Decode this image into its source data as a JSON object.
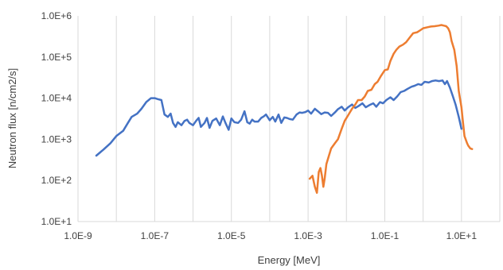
{
  "chart_data": {
    "type": "line",
    "title": "",
    "xlabel": "Energy [MeV]",
    "ylabel": "Neutron flux [n/cm2/s]",
    "x_scale": "log",
    "y_scale": "log",
    "xlim": [
      1e-09,
      100
    ],
    "ylim": [
      10,
      1000000
    ],
    "grid": "vertical",
    "legend": "none",
    "x_ticks": [
      {
        "value": 1e-09,
        "label": "1.0E-9"
      },
      {
        "value": 1e-07,
        "label": "1.0E-7"
      },
      {
        "value": 1e-05,
        "label": "1.0E-5"
      },
      {
        "value": 0.001,
        "label": "1.0E-3"
      },
      {
        "value": 0.1,
        "label": "1.0E-1"
      },
      {
        "value": 10,
        "label": "1.0E+1"
      }
    ],
    "y_ticks": [
      {
        "value": 10,
        "label": "1.0E+1"
      },
      {
        "value": 100,
        "label": "1.0E+2"
      },
      {
        "value": 1000,
        "label": "1.0E+3"
      },
      {
        "value": 10000,
        "label": "1.0E+4"
      },
      {
        "value": 100000,
        "label": "1.0E+5"
      },
      {
        "value": 1000000,
        "label": "1.0E+6"
      }
    ],
    "colors": {
      "series_1": "#4472c4",
      "series_2": "#ed7d31",
      "grid": "#d9d9d9",
      "text": "#404040"
    },
    "series": [
      {
        "color": "#4472c4",
        "x": [
          3e-09,
          4.5e-09,
          7e-09,
          1e-08,
          1.5e-08,
          2e-08,
          2.5e-08,
          3.5e-08,
          4.5e-08,
          6e-08,
          8e-08,
          1e-07,
          1.2e-07,
          1.5e-07,
          1.8e-07,
          2.2e-07,
          2.6e-07,
          3e-07,
          3.5e-07,
          4e-07,
          5e-07,
          6e-07,
          7e-07,
          8e-07,
          1e-06,
          1.2e-06,
          1.4e-06,
          1.6e-06,
          2e-06,
          2.3e-06,
          2.7e-06,
          3.2e-06,
          4e-06,
          5e-06,
          6e-06,
          7e-06,
          8.5e-06,
          1e-05,
          1.2e-05,
          1.5e-05,
          1.8e-05,
          2.2e-05,
          2.6e-05,
          3e-05,
          3.5e-05,
          4e-05,
          5e-05,
          6e-05,
          7e-05,
          8e-05,
          0.0001,
          0.00012,
          0.00014,
          0.00017,
          0.0002,
          0.00024,
          0.00028,
          0.00033,
          0.0004,
          0.0005,
          0.0006,
          0.0007,
          0.00085,
          0.001,
          0.0012,
          0.0015,
          0.0018,
          0.0022,
          0.0027,
          0.0033,
          0.004,
          0.005,
          0.006,
          0.0075,
          0.009,
          0.011,
          0.014,
          0.017,
          0.021,
          0.026,
          0.032,
          0.04,
          0.05,
          0.06,
          0.075,
          0.09,
          0.11,
          0.14,
          0.17,
          0.21,
          0.26,
          0.32,
          0.4,
          0.5,
          0.6,
          0.75,
          0.9,
          1.1,
          1.4,
          1.7,
          2.1,
          2.6,
          3.2,
          3.7,
          4.2,
          5,
          6,
          7,
          8.5,
          10
        ],
        "y": [
          400,
          550,
          800,
          1200,
          1600,
          2500,
          3500,
          4200,
          5500,
          8000,
          10000,
          10000,
          9500,
          9000,
          4000,
          3500,
          4200,
          2500,
          2000,
          2600,
          2200,
          2800,
          3000,
          2500,
          2200,
          2800,
          3300,
          2000,
          2500,
          3300,
          1900,
          2800,
          3200,
          2200,
          3600,
          2500,
          1700,
          3200,
          2600,
          2500,
          3000,
          4800,
          2600,
          2400,
          3000,
          2700,
          2700,
          3300,
          3600,
          4000,
          2900,
          3500,
          2700,
          4000,
          2500,
          3400,
          3300,
          3100,
          3000,
          4000,
          4500,
          4400,
          4600,
          5000,
          4200,
          5500,
          4800,
          4100,
          4500,
          4400,
          3700,
          4500,
          5400,
          6200,
          5000,
          6000,
          7000,
          5800,
          6500,
          7500,
          6000,
          6800,
          7500,
          6200,
          8000,
          7500,
          9000,
          10500,
          9000,
          11000,
          14000,
          15000,
          17000,
          19000,
          20000,
          22000,
          21000,
          25000,
          24000,
          26000,
          27000,
          26000,
          27000,
          22000,
          26000,
          18000,
          11000,
          7000,
          3500,
          1800
        ]
      },
      {
        "color": "#ed7d31",
        "x": [
          0.0011,
          0.0013,
          0.0015,
          0.0017,
          0.0019,
          0.0021,
          0.0023,
          0.0025,
          0.0027,
          0.003,
          0.0035,
          0.004,
          0.005,
          0.006,
          0.0075,
          0.009,
          0.011,
          0.014,
          0.017,
          0.02,
          0.025,
          0.03,
          0.036,
          0.045,
          0.055,
          0.065,
          0.08,
          0.1,
          0.12,
          0.14,
          0.17,
          0.2,
          0.24,
          0.3,
          0.36,
          0.45,
          0.55,
          0.7,
          0.85,
          1,
          1.3,
          1.6,
          2,
          2.5,
          3,
          3.5,
          4,
          4.5,
          5,
          5.5,
          6.5,
          7.5,
          8.5,
          10,
          11,
          12,
          14,
          15,
          17,
          19
        ],
        "y": [
          110,
          130,
          70,
          50,
          160,
          200,
          130,
          70,
          110,
          250,
          400,
          600,
          800,
          1000,
          1800,
          2800,
          3800,
          5500,
          7000,
          9000,
          9000,
          11000,
          15000,
          16000,
          22000,
          25000,
          35000,
          48000,
          50000,
          80000,
          120000,
          150000,
          180000,
          200000,
          230000,
          300000,
          380000,
          400000,
          450000,
          500000,
          530000,
          550000,
          560000,
          580000,
          600000,
          580000,
          560000,
          500000,
          400000,
          250000,
          150000,
          60000,
          15000,
          6000,
          2500,
          1200,
          800,
          700,
          600,
          580
        ]
      }
    ]
  }
}
